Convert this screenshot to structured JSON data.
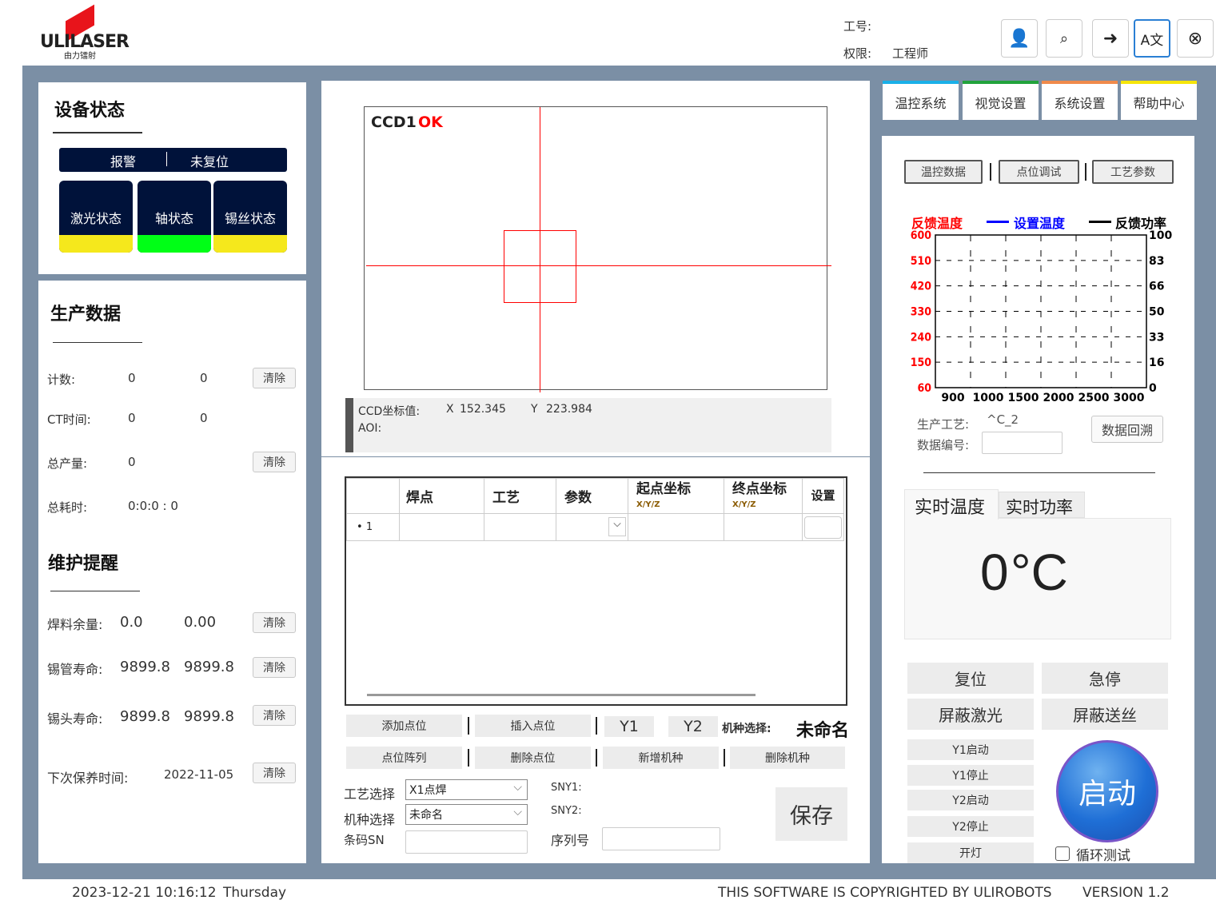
{
  "header": {
    "logo_text": "ULILASER",
    "logo_sub": "由力镭射",
    "job_no_label": "工号:",
    "job_no_value": "",
    "permission_label": "权限:",
    "permission_value": "工程师",
    "icons": [
      "user-icon",
      "user-search-icon",
      "logout-icon",
      "translate-icon",
      "close-circle-icon"
    ]
  },
  "right_tabs": [
    {
      "label": "温控系统",
      "color": "#1ab0e8"
    },
    {
      "label": "视觉设置",
      "color": "#22a33c"
    },
    {
      "label": "系统设置",
      "color": "#f08a4b"
    },
    {
      "label": "帮助中心",
      "color": "#f5e50a"
    }
  ],
  "device_status": {
    "title": "设备状态",
    "alarm": "报警",
    "reset_state": "未复位",
    "items": [
      {
        "label": "激光状态",
        "color": "#f5e81c"
      },
      {
        "label": "轴状态",
        "color": "#00ff16"
      },
      {
        "label": "锡丝状态",
        "color": "#f5e81c"
      }
    ]
  },
  "production": {
    "title": "生产数据",
    "clear": "清除",
    "rows": [
      {
        "label": "计数:",
        "v1": "0",
        "v2": "0"
      },
      {
        "label": "CT时间:",
        "v1": "0",
        "v2": "0"
      },
      {
        "label": "总产量:",
        "v1": "0",
        "v2": ""
      },
      {
        "label": "总耗时:",
        "v1": "0:0:0 : 0",
        "v2": ""
      }
    ]
  },
  "maintenance": {
    "title": "维护提醒",
    "rows": [
      {
        "label": "焊料余量:",
        "v1": "0.0",
        "v2": "0.00"
      },
      {
        "label": "锡管寿命:",
        "v1": "9899.8",
        "v2": "9899.8"
      },
      {
        "label": "锡头寿命:",
        "v1": "9899.8",
        "v2": "9899.8"
      },
      {
        "label": "下次保养时间:",
        "v1": "2022-11-05",
        "v2": ""
      }
    ]
  },
  "camera": {
    "name": "CCD1",
    "status": "OK",
    "coord_label": "CCD坐标值:",
    "x_label": "X",
    "x": "152.345",
    "y_label": "Y",
    "y": "223.984",
    "aoi_label": "AOI:"
  },
  "table": {
    "columns": [
      "焊点",
      "工艺",
      "参数",
      "起点坐标",
      "终点坐标",
      "设置"
    ],
    "sub": "X/Y/Z",
    "rows": [
      {
        "index": "1"
      }
    ]
  },
  "center_buttons": {
    "add_point": "添加点位",
    "insert_point": "插入点位",
    "y1": "Y1",
    "y2": "Y2",
    "model_select_label": "机种选择:",
    "model_select_value": "未命名",
    "point_array": "点位阵列",
    "delete_point": "删除点位",
    "add_model": "新增机种",
    "delete_model": "删除机种",
    "save": "保存"
  },
  "form": {
    "process_label": "工艺选择",
    "process_value": "X1点焊",
    "model_label": "机种选择",
    "model_value": "未命名",
    "barcode_label": "条码SN",
    "sny1": "SNY1:",
    "sny2": "SNY2:",
    "serial_label": "序列号"
  },
  "temp_panel": {
    "sub_tabs": [
      "温控数据",
      "点位调试",
      "工艺参数"
    ],
    "process_label": "生产工艺:",
    "process_value": "^C_2",
    "data_no_label": "数据编号:",
    "replay": "数据回溯",
    "live_tabs": [
      "实时温度",
      "实时功率"
    ],
    "live_value": "0",
    "live_unit": "°C"
  },
  "chart_data": {
    "type": "line",
    "legend": [
      {
        "name": "反馈温度",
        "color": "#ff0000"
      },
      {
        "name": "设置温度",
        "color": "#0000ff"
      },
      {
        "name": "反馈功率",
        "color": "#000000"
      }
    ],
    "y_left_ticks": [
      600,
      510,
      420,
      330,
      240,
      150,
      60
    ],
    "y_right_ticks": [
      100,
      83,
      66,
      50,
      33,
      16,
      0
    ],
    "x_ticks": [
      900,
      1000,
      1500,
      2000,
      2500,
      3000
    ],
    "ylim": [
      60,
      600
    ],
    "ylim_right": [
      0,
      100
    ],
    "grid": true,
    "series": []
  },
  "controls": {
    "reset": "复位",
    "estop": "急停",
    "mask_laser": "屏蔽激光",
    "mask_feed": "屏蔽送丝",
    "y1_start": "Y1启动",
    "y1_stop": "Y1停止",
    "y2_start": "Y2启动",
    "y2_stop": "Y2停止",
    "light": "开灯",
    "start": "启动",
    "loop_test": "循环测试",
    "loop_checked": false
  },
  "status_bar": {
    "datetime": "2023-12-21 10:16:12",
    "weekday": "Thursday",
    "copyright": "THIS SOFTWARE IS COPYRIGHTED BY ULIROBOTS",
    "version": "VERSION 1.2"
  }
}
